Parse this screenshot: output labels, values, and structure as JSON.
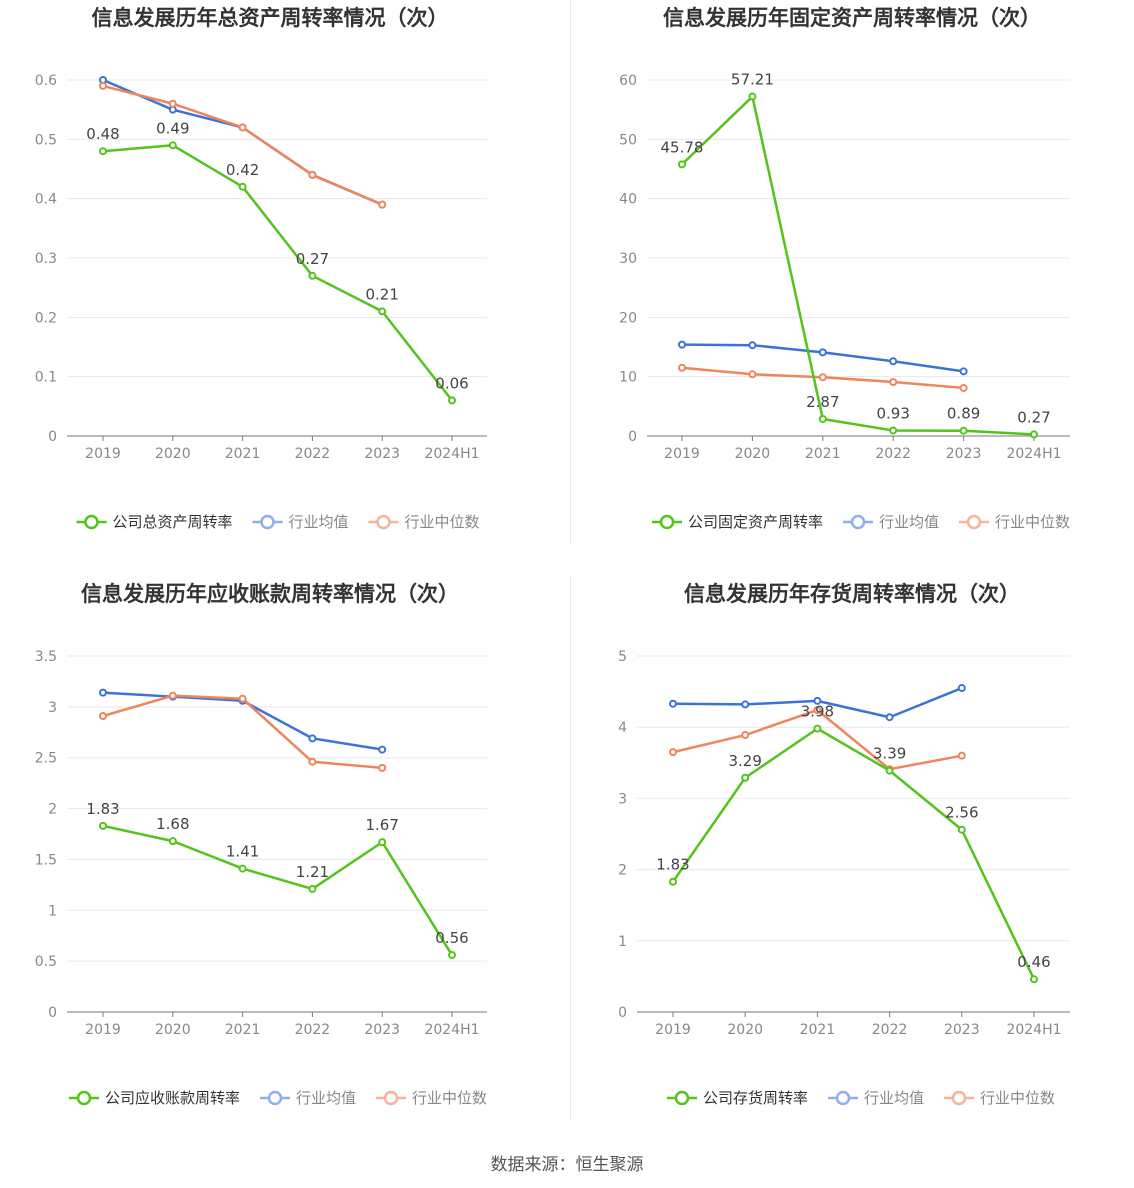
{
  "source_text": "数据来源：恒生聚源",
  "colors": {
    "company": "#52c41a",
    "industry_avg": "#3b73d9",
    "industry_median": "#f0845c",
    "grid": "#e6e8f0",
    "axis": "#888888"
  },
  "chart_data": [
    {
      "type": "line",
      "title": "信息发展历年总资产周转率情况（次）",
      "categories": [
        "2019",
        "2020",
        "2021",
        "2022",
        "2023",
        "2024H1"
      ],
      "ylim": [
        0,
        0.6
      ],
      "yticks": [
        0,
        0.1,
        0.2,
        0.3,
        0.4,
        0.5,
        0.6
      ],
      "ytick_labels": [
        "0",
        "0.1",
        "0.2",
        "0.3",
        "0.4",
        "0.5",
        "0.6"
      ],
      "series": [
        {
          "name": "公司总资产周转率",
          "color": "#52c41a",
          "values": [
            0.48,
            0.49,
            0.42,
            0.27,
            0.21,
            0.06
          ],
          "labels": [
            "0.48",
            "0.49",
            "0.42",
            "0.27",
            "0.21",
            "0.06"
          ]
        },
        {
          "name": "行业均值",
          "color": "#3b73d9",
          "values": [
            0.6,
            0.55,
            0.52,
            0.44,
            0.39,
            null
          ]
        },
        {
          "name": "行业中位数",
          "color": "#f0845c",
          "values": [
            0.59,
            0.56,
            0.52,
            0.44,
            0.39,
            null
          ]
        }
      ],
      "legend": "bottom"
    },
    {
      "type": "line",
      "title": "信息发展历年固定资产周转率情况（次）",
      "categories": [
        "2019",
        "2020",
        "2021",
        "2022",
        "2023",
        "2024H1"
      ],
      "ylim": [
        0,
        60
      ],
      "yticks": [
        0,
        10,
        20,
        30,
        40,
        50,
        60
      ],
      "ytick_labels": [
        "0",
        "10",
        "20",
        "30",
        "40",
        "50",
        "60"
      ],
      "series": [
        {
          "name": "公司固定资产周转率",
          "color": "#52c41a",
          "values": [
            45.78,
            57.21,
            2.87,
            0.93,
            0.89,
            0.27
          ],
          "labels": [
            "45.78",
            "57.21",
            "2.87",
            "0.93",
            "0.89",
            "0.27"
          ]
        },
        {
          "name": "行业均值",
          "color": "#3b73d9",
          "values": [
            15.4,
            15.3,
            14.1,
            12.6,
            10.9,
            null
          ]
        },
        {
          "name": "行业中位数",
          "color": "#f0845c",
          "values": [
            11.5,
            10.4,
            9.9,
            9.1,
            8.1,
            null
          ]
        }
      ],
      "legend": "bottom"
    },
    {
      "type": "line",
      "title": "信息发展历年应收账款周转率情况（次）",
      "categories": [
        "2019",
        "2020",
        "2021",
        "2022",
        "2023",
        "2024H1"
      ],
      "ylim": [
        0,
        3.5
      ],
      "yticks": [
        0,
        0.5,
        1,
        1.5,
        2,
        2.5,
        3,
        3.5
      ],
      "ytick_labels": [
        "0",
        "0.5",
        "1",
        "1.5",
        "2",
        "2.5",
        "3",
        "3.5"
      ],
      "series": [
        {
          "name": "公司应收账款周转率",
          "color": "#52c41a",
          "values": [
            1.83,
            1.68,
            1.41,
            1.21,
            1.67,
            0.56
          ],
          "labels": [
            "1.83",
            "1.68",
            "1.41",
            "1.21",
            "1.67",
            "0.56"
          ]
        },
        {
          "name": "行业均值",
          "color": "#3b73d9",
          "values": [
            3.14,
            3.1,
            3.06,
            2.69,
            2.58,
            null
          ]
        },
        {
          "name": "行业中位数",
          "color": "#f0845c",
          "values": [
            2.91,
            3.11,
            3.08,
            2.46,
            2.4,
            null
          ]
        }
      ],
      "legend": "bottom"
    },
    {
      "type": "line",
      "title": "信息发展历年存货周转率情况（次）",
      "categories": [
        "2019",
        "2020",
        "2021",
        "2022",
        "2023",
        "2024H1"
      ],
      "ylim": [
        0,
        5
      ],
      "yticks": [
        0,
        1,
        2,
        3,
        4,
        5
      ],
      "ytick_labels": [
        "0",
        "1",
        "2",
        "3",
        "4",
        "5"
      ],
      "series": [
        {
          "name": "公司存货周转率",
          "color": "#52c41a",
          "values": [
            1.83,
            3.29,
            3.98,
            3.39,
            2.56,
            0.46
          ],
          "labels": [
            "1.83",
            "3.29",
            "3.98",
            "3.39",
            "2.56",
            "0.46"
          ]
        },
        {
          "name": "行业均值",
          "color": "#3b73d9",
          "values": [
            4.33,
            4.32,
            4.37,
            4.14,
            4.55,
            null
          ]
        },
        {
          "name": "行业中位数",
          "color": "#f0845c",
          "values": [
            3.65,
            3.89,
            4.24,
            3.41,
            3.6,
            null
          ]
        }
      ],
      "legend": "bottom"
    }
  ]
}
